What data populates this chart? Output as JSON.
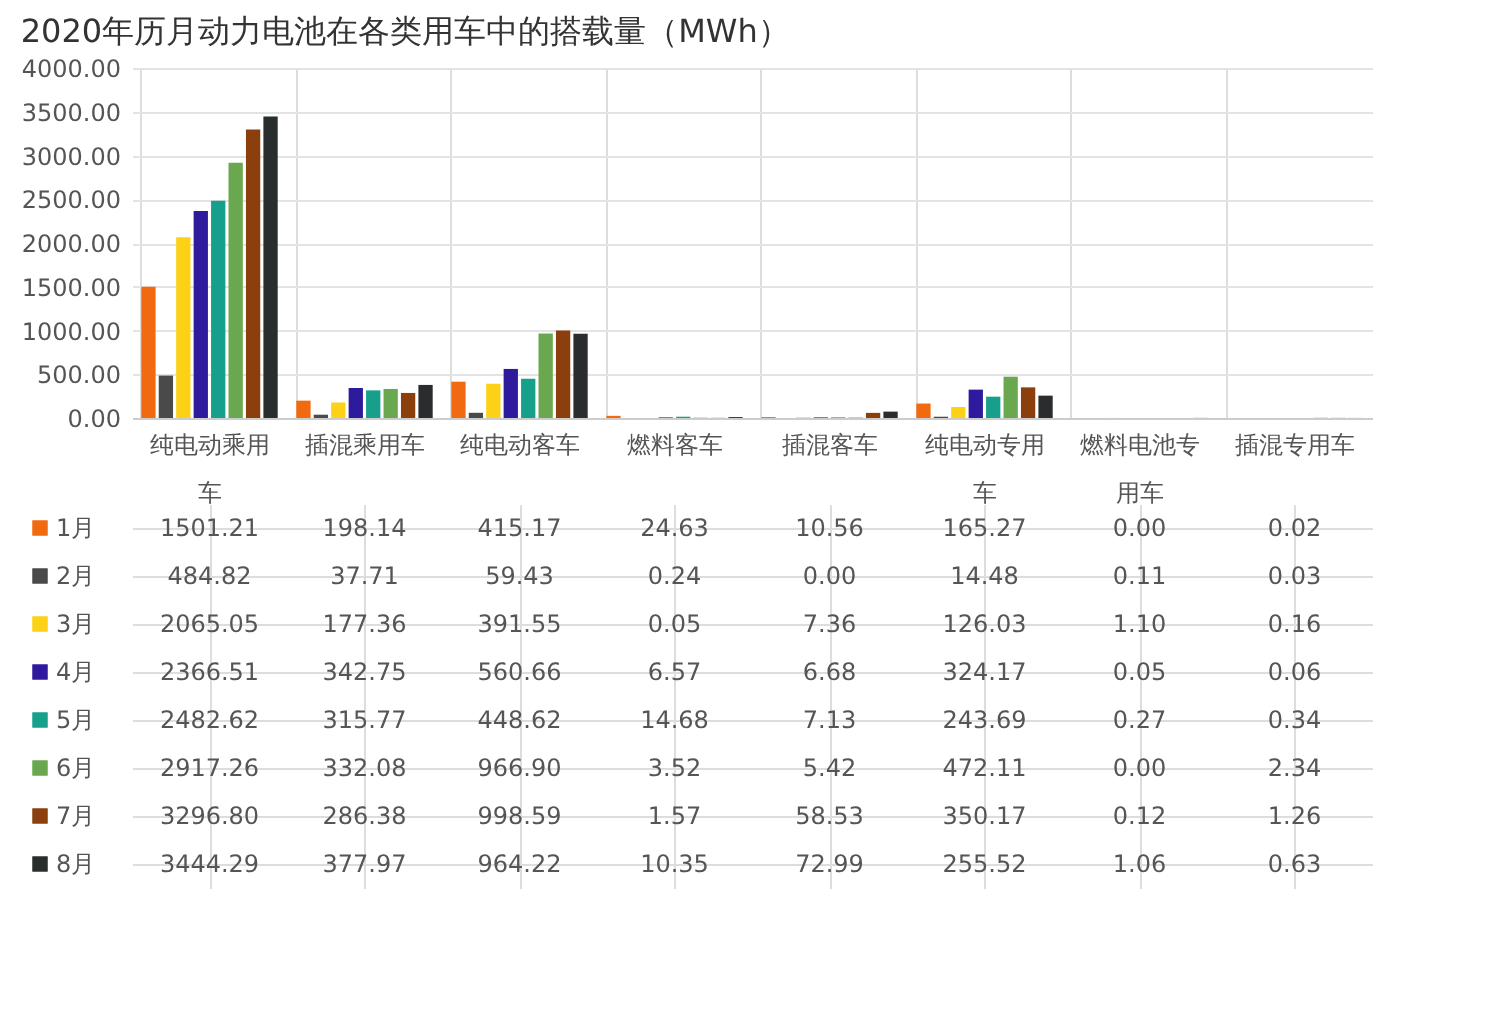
{
  "chart_data": {
    "type": "bar",
    "title": "2020年历月动力电池在各类用车中的搭载量（MWh）",
    "categories": [
      "纯电动乘用车",
      "插混乘用车",
      "纯电动客车",
      "燃料客车",
      "插混客车",
      "纯电动专用车",
      "燃料电池专用车",
      "插混专用车"
    ],
    "ylim": [
      0,
      4000
    ],
    "yticks": [
      {
        "value": 0,
        "label": "0.00"
      },
      {
        "value": 500,
        "label": "500.00"
      },
      {
        "value": 1000,
        "label": "1000.00"
      },
      {
        "value": 1500,
        "label": "1500.00"
      },
      {
        "value": 2000,
        "label": "2000.00"
      },
      {
        "value": 2500,
        "label": "2500.00"
      },
      {
        "value": 3000,
        "label": "3000.00"
      },
      {
        "value": 3500,
        "label": "3500.00"
      },
      {
        "value": 4000,
        "label": "4000.00"
      }
    ],
    "grid": "y",
    "legend": "bottom",
    "series": [
      {
        "name": "1月",
        "color": "#f26a10",
        "values": [
          1501.21,
          198.14,
          415.17,
          24.63,
          10.56,
          165.27,
          0.0,
          0.02
        ],
        "value_labels": [
          "1501.21",
          "198.14",
          "415.17",
          "24.63",
          "10.56",
          "165.27",
          "0.00",
          "0.02"
        ]
      },
      {
        "name": "2月",
        "color": "#4a4a4a",
        "values": [
          484.82,
          37.71,
          59.43,
          0.24,
          0.0,
          14.48,
          0.11,
          0.03
        ],
        "value_labels": [
          "484.82",
          "37.71",
          "59.43",
          "0.24",
          "0.00",
          "14.48",
          "0.11",
          "0.03"
        ]
      },
      {
        "name": "3月",
        "color": "#fcd116",
        "values": [
          2065.05,
          177.36,
          391.55,
          0.05,
          7.36,
          126.03,
          1.1,
          0.16
        ],
        "value_labels": [
          "2065.05",
          "177.36",
          "391.55",
          "0.05",
          "7.36",
          "126.03",
          "1.10",
          "0.16"
        ]
      },
      {
        "name": "4月",
        "color": "#2e1a9c",
        "values": [
          2366.51,
          342.75,
          560.66,
          6.57,
          6.68,
          324.17,
          0.05,
          0.06
        ],
        "value_labels": [
          "2366.51",
          "342.75",
          "560.66",
          "6.57",
          "6.68",
          "324.17",
          "0.05",
          "0.06"
        ]
      },
      {
        "name": "5月",
        "color": "#16a08c",
        "values": [
          2482.62,
          315.77,
          448.62,
          14.68,
          7.13,
          243.69,
          0.27,
          0.34
        ],
        "value_labels": [
          "2482.62",
          "315.77",
          "448.62",
          "14.68",
          "7.13",
          "243.69",
          "0.27",
          "0.34"
        ]
      },
      {
        "name": "6月",
        "color": "#6aa84f",
        "values": [
          2917.26,
          332.08,
          966.9,
          3.52,
          5.42,
          472.11,
          0.0,
          2.34
        ],
        "value_labels": [
          "2917.26",
          "332.08",
          "966.90",
          "3.52",
          "5.42",
          "472.11",
          "0.00",
          "2.34"
        ]
      },
      {
        "name": "7月",
        "color": "#8b3f0c",
        "values": [
          3296.8,
          286.38,
          998.59,
          1.57,
          58.53,
          350.17,
          0.12,
          1.26
        ],
        "value_labels": [
          "3296.80",
          "286.38",
          "998.59",
          "1.57",
          "58.53",
          "350.17",
          "0.12",
          "1.26"
        ]
      },
      {
        "name": "8月",
        "color": "#2a2d2e",
        "values": [
          3444.29,
          377.97,
          964.22,
          10.35,
          72.99,
          255.52,
          1.06,
          0.63
        ],
        "value_labels": [
          "3444.29",
          "377.97",
          "964.22",
          "10.35",
          "72.99",
          "255.52",
          "1.06",
          "0.63"
        ]
      }
    ]
  }
}
